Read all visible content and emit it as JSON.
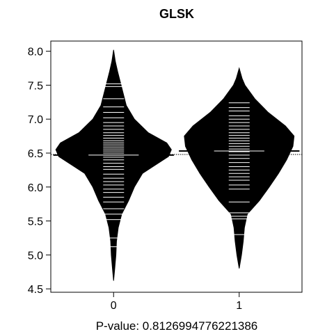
{
  "chart_data": {
    "type": "beanplot",
    "title": "GLSK",
    "caption": "P-value: 0.8126994776221386",
    "categories": [
      "0",
      "1"
    ],
    "ylim": [
      4.45,
      8.15
    ],
    "yticks": [
      "4.5",
      "5.0",
      "5.5",
      "6.0",
      "6.5",
      "7.0",
      "7.5",
      "8.0"
    ],
    "ytick_values": [
      4.5,
      5.0,
      5.5,
      6.0,
      6.5,
      7.0,
      7.5,
      8.0
    ],
    "overall_mean": 6.48,
    "colors": {
      "bean": "#000000",
      "line": "#ffffff",
      "background": "#ffffff"
    },
    "beans": [
      {
        "category": "0",
        "mean": 6.47,
        "range": [
          4.62,
          8.02
        ],
        "density": [
          [
            4.62,
            0.0
          ],
          [
            4.8,
            0.02
          ],
          [
            5.0,
            0.04
          ],
          [
            5.2,
            0.05
          ],
          [
            5.4,
            0.08
          ],
          [
            5.6,
            0.14
          ],
          [
            5.8,
            0.26
          ],
          [
            6.0,
            0.36
          ],
          [
            6.2,
            0.5
          ],
          [
            6.3,
            0.68
          ],
          [
            6.45,
            0.95
          ],
          [
            6.55,
            1.0
          ],
          [
            6.65,
            0.92
          ],
          [
            6.8,
            0.6
          ],
          [
            7.0,
            0.36
          ],
          [
            7.2,
            0.22
          ],
          [
            7.5,
            0.13
          ],
          [
            7.7,
            0.07
          ],
          [
            7.85,
            0.03
          ],
          [
            8.02,
            0.0
          ]
        ],
        "points": [
          5.12,
          5.25,
          5.52,
          5.6,
          5.68,
          5.78,
          5.85,
          5.92,
          5.97,
          6.03,
          6.08,
          6.13,
          6.19,
          6.26,
          6.3,
          6.35,
          6.4,
          6.44,
          6.47,
          6.5,
          6.53,
          6.56,
          6.59,
          6.62,
          6.65,
          6.68,
          6.72,
          6.76,
          6.8,
          6.85,
          6.9,
          6.95,
          7.02,
          7.1,
          7.18,
          7.3,
          7.48,
          7.52
        ]
      },
      {
        "category": "1",
        "mean": 6.53,
        "range": [
          4.8,
          7.75
        ],
        "density": [
          [
            4.8,
            0.0
          ],
          [
            5.0,
            0.04
          ],
          [
            5.2,
            0.07
          ],
          [
            5.4,
            0.09
          ],
          [
            5.6,
            0.14
          ],
          [
            5.8,
            0.35
          ],
          [
            6.0,
            0.52
          ],
          [
            6.2,
            0.68
          ],
          [
            6.4,
            0.82
          ],
          [
            6.6,
            0.93
          ],
          [
            6.75,
            0.95
          ],
          [
            6.9,
            0.8
          ],
          [
            7.1,
            0.5
          ],
          [
            7.3,
            0.27
          ],
          [
            7.5,
            0.1
          ],
          [
            7.6,
            0.05
          ],
          [
            7.75,
            0.0
          ]
        ],
        "points": [
          5.3,
          5.53,
          5.57,
          5.62,
          5.78,
          5.97,
          6.03,
          6.1,
          6.15,
          6.2,
          6.25,
          6.3,
          6.36,
          6.42,
          6.47,
          6.52,
          6.56,
          6.6,
          6.64,
          6.68,
          6.72,
          6.76,
          6.8,
          6.85,
          6.9,
          6.95,
          7.0,
          7.05,
          7.12,
          7.17,
          7.24
        ]
      }
    ]
  }
}
